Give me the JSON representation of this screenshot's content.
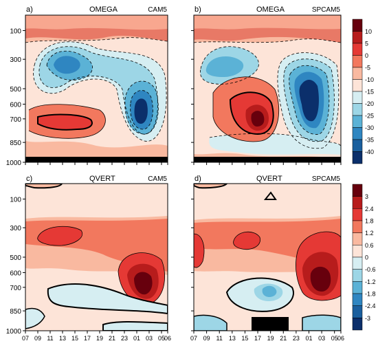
{
  "panels": [
    {
      "label": "a)",
      "variable": "OMEGA",
      "model": "CAM5"
    },
    {
      "label": "b)",
      "variable": "OMEGA",
      "model": "SPCAM5"
    },
    {
      "label": "c)",
      "variable": "QVERT",
      "model": "CAM5"
    },
    {
      "label": "d)",
      "variable": "QVERT",
      "model": "SPCAM5"
    }
  ],
  "y_ticks": [
    "100",
    "300",
    "500",
    "600",
    "700",
    "850",
    "1000"
  ],
  "x_ticks": [
    "07",
    "09",
    "11",
    "13",
    "15",
    "17",
    "19",
    "21",
    "23",
    "01",
    "03",
    "05",
    "06"
  ],
  "colorbars": [
    {
      "labels": [
        "10",
        "5",
        "0",
        "-5",
        "-10",
        "-15",
        "-20",
        "-25",
        "-30",
        "-35",
        "-40"
      ],
      "colors": [
        "#67000d",
        "#b71c1c",
        "#e53935",
        "#f2785e",
        "#f9b9a0",
        "#fde4d8",
        "#d6eef2",
        "#9dd6e6",
        "#5bb2d6",
        "#2f86c1",
        "#1a5f9e",
        "#0b2f6b"
      ]
    },
    {
      "labels": [
        "3",
        "2.4",
        "1.8",
        "1.2",
        "0.6",
        "0",
        "-0.6",
        "-1.2",
        "-1.8",
        "-2.4",
        "-3"
      ],
      "colors": [
        "#67000d",
        "#b71c1c",
        "#e53935",
        "#f2785e",
        "#f9b9a0",
        "#fde4d8",
        "#d6eef2",
        "#9dd6e6",
        "#5bb2d6",
        "#2f86c1",
        "#1a5f9e",
        "#0b2f6b"
      ]
    }
  ],
  "chart_data": [
    {
      "type": "heatmap",
      "title": "OMEGA CAM5",
      "x_ticks": [
        "07",
        "09",
        "11",
        "13",
        "15",
        "17",
        "19",
        "21",
        "23",
        "01",
        "03",
        "05",
        "06"
      ],
      "y_ticks": [
        100,
        300,
        500,
        600,
        700,
        850,
        1000
      ],
      "note": "contour field"
    },
    {
      "type": "heatmap",
      "title": "OMEGA SPCAM5",
      "x_ticks": [
        "07",
        "09",
        "11",
        "13",
        "15",
        "17",
        "19",
        "21",
        "23",
        "01",
        "03",
        "05",
        "06"
      ],
      "y_ticks": [
        100,
        300,
        500,
        600,
        700,
        850,
        1000
      ]
    },
    {
      "type": "heatmap",
      "title": "QVERT CAM5",
      "x_ticks": [
        "07",
        "09",
        "11",
        "13",
        "15",
        "17",
        "19",
        "21",
        "23",
        "01",
        "03",
        "05",
        "06"
      ],
      "y_ticks": [
        100,
        300,
        500,
        600,
        700,
        850,
        1000
      ]
    },
    {
      "type": "heatmap",
      "title": "QVERT SPCAM5",
      "x_ticks": [
        "07",
        "09",
        "11",
        "13",
        "15",
        "17",
        "19",
        "21",
        "23",
        "01",
        "03",
        "05",
        "06"
      ],
      "y_ticks": [
        100,
        300,
        500,
        600,
        700,
        850,
        1000
      ]
    }
  ]
}
